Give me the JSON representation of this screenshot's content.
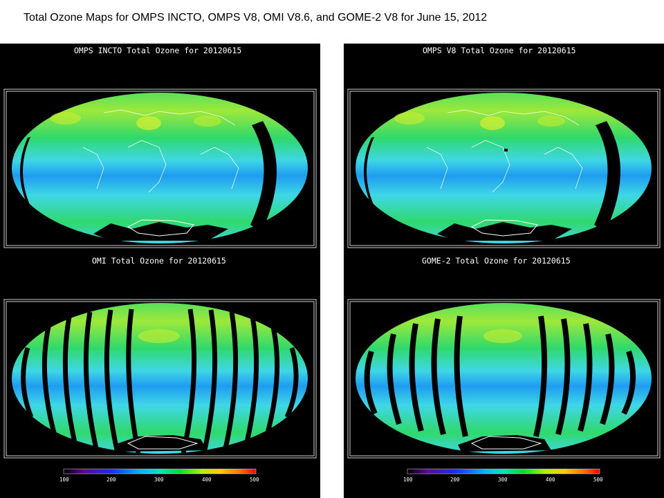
{
  "slide_title": "Total Ozone Maps for OMPS INCTO, OMPS V8, OMI V8.6, and GOME-2 V8 for June 15, 2012",
  "maps": {
    "omps_incto": {
      "title": "OMPS INCTO Total Ozone for 20120615",
      "gap_pattern": "single-orbit-gap"
    },
    "omps_v8": {
      "title": "OMPS V8 Total Ozone for 20120615",
      "gap_pattern": "single-orbit-gap"
    },
    "omi": {
      "title": "OMI Total Ozone for 20120615",
      "gap_pattern": "row-anomaly-stripes"
    },
    "gome2": {
      "title": "GOME-2 Total Ozone for 20120615",
      "gap_pattern": "inter-orbit-gaps"
    }
  },
  "colorbar": {
    "ticks": [
      "100",
      "200",
      "300",
      "400",
      "500"
    ],
    "colors": [
      "#000000",
      "#5a0a8c",
      "#1e28ff",
      "#00b4ff",
      "#00e6b4",
      "#00dc3c",
      "#b4f000",
      "#ffc800",
      "#ff7800",
      "#ff0000"
    ]
  },
  "palette": {
    "ocean_base": "#3ed7e6",
    "midlatitude": "#2fd96c",
    "high_ozone": "#c7ef30",
    "tropical_band": "#1e9cf0",
    "gap_color": "#000000",
    "coastline_color": "#ffffff"
  }
}
